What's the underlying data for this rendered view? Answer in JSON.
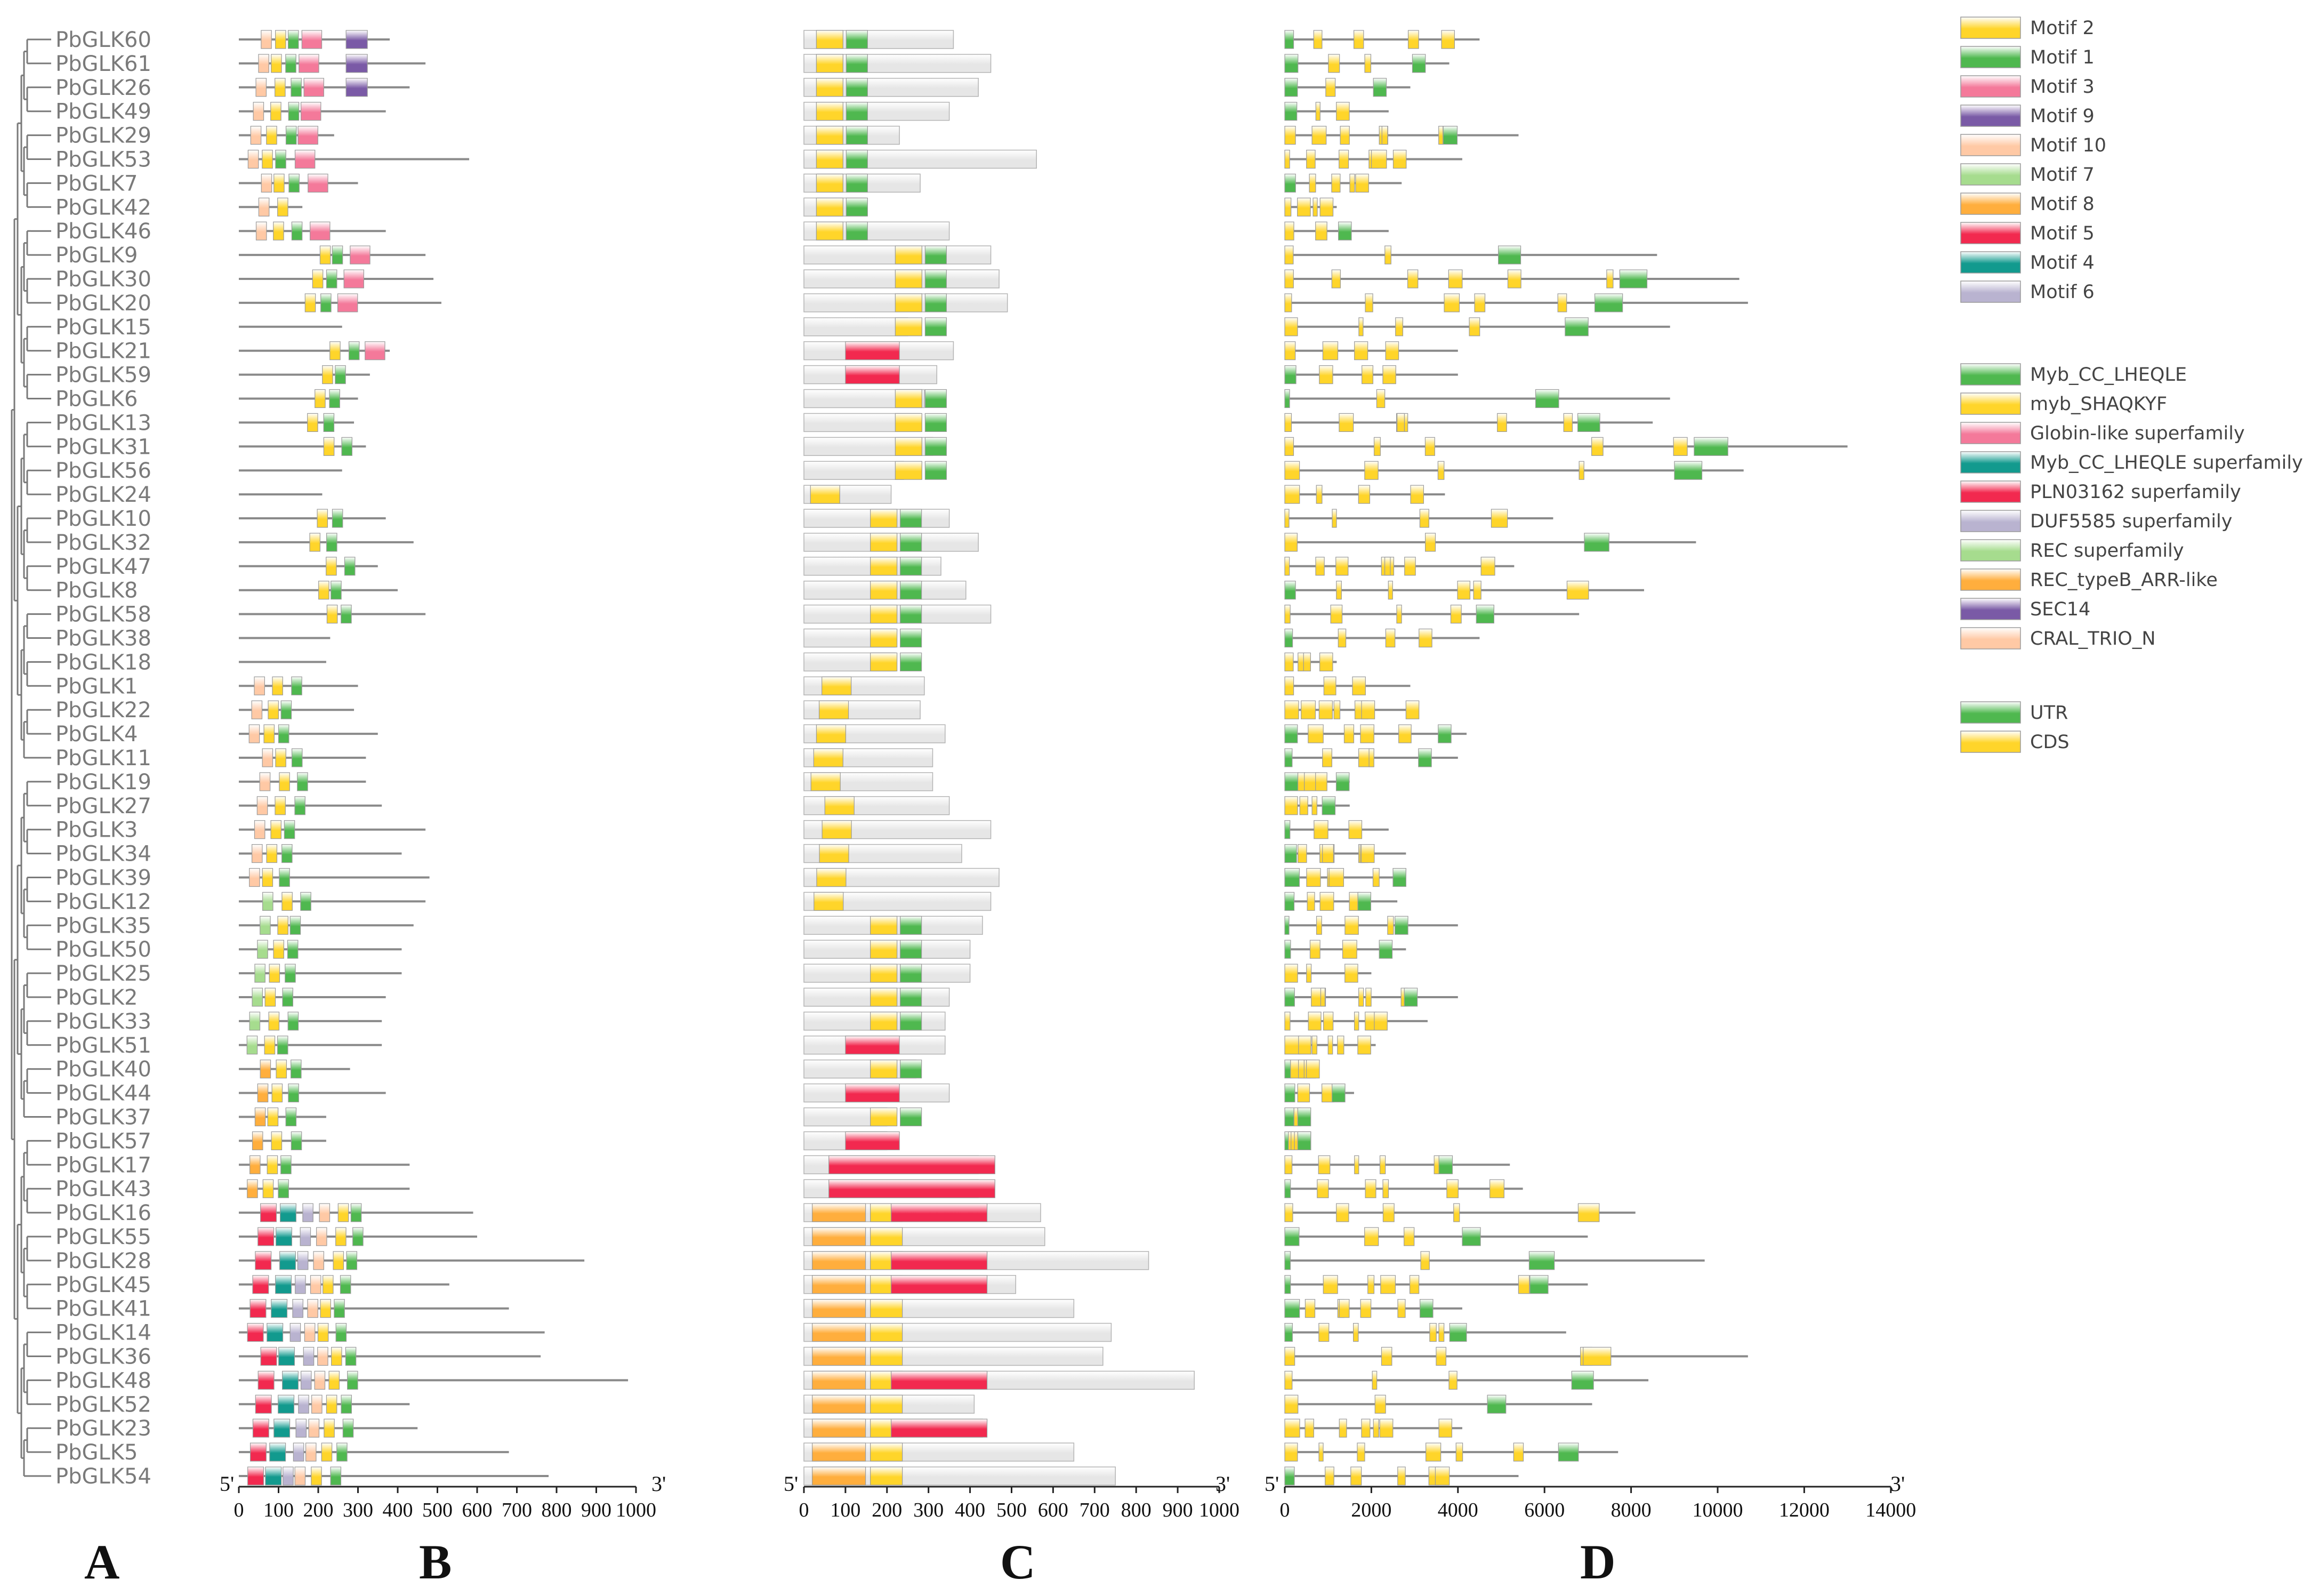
{
  "genes": [
    "PbGLK60",
    "PbGLK61",
    "PbGLK26",
    "PbGLK49",
    "PbGLK29",
    "PbGLK53",
    "PbGLK7",
    "PbGLK42",
    "PbGLK46",
    "PbGLK9",
    "PbGLK30",
    "PbGLK20",
    "PbGLK15",
    "PbGLK21",
    "PbGLK59",
    "PbGLK6",
    "PbGLK13",
    "PbGLK31",
    "PbGLK56",
    "PbGLK24",
    "PbGLK10",
    "PbGLK32",
    "PbGLK47",
    "PbGLK8",
    "PbGLK58",
    "PbGLK38",
    "PbGLK18",
    "PbGLK1",
    "PbGLK22",
    "PbGLK4",
    "PbGLK11",
    "PbGLK19",
    "PbGLK27",
    "PbGLK3",
    "PbGLK34",
    "PbGLK39",
    "PbGLK12",
    "PbGLK35",
    "PbGLK50",
    "PbGLK25",
    "PbGLK2",
    "PbGLK33",
    "PbGLK51",
    "PbGLK40",
    "PbGLK44",
    "PbGLK37",
    "PbGLK57",
    "PbGLK17",
    "PbGLK43",
    "PbGLK16",
    "PbGLK55",
    "PbGLK28",
    "PbGLK45",
    "PbGLK41",
    "PbGLK14",
    "PbGLK36",
    "PbGLK48",
    "PbGLK52",
    "PbGLK23",
    "PbGLK5",
    "PbGLK54"
  ],
  "panels": {
    "a": "A",
    "b": "B",
    "c": "C",
    "d": "D"
  },
  "ends": {
    "five": "5'",
    "three": "3'"
  },
  "axes": {
    "b_ticks": [
      "0",
      "100",
      "200",
      "300",
      "400",
      "500",
      "600",
      "700",
      "800",
      "900",
      "1000"
    ],
    "b_values": [
      0,
      100,
      200,
      300,
      400,
      500,
      600,
      700,
      800,
      900,
      1000
    ],
    "c_ticks": [
      "0",
      "100",
      "200",
      "300",
      "400",
      "500",
      "600",
      "700",
      "800",
      "900",
      "1000"
    ],
    "c_values": [
      0,
      100,
      200,
      300,
      400,
      500,
      600,
      700,
      800,
      900,
      1000
    ],
    "d_ticks": [
      "0",
      "2000",
      "4000",
      "6000",
      "8000",
      "10000",
      "12000",
      "14000"
    ],
    "d_values": [
      0,
      2000,
      4000,
      6000,
      8000,
      10000,
      12000,
      14000
    ]
  },
  "legend": {
    "motifs": [
      {
        "label": "Motif 2",
        "color": "#ffd52a"
      },
      {
        "label": "Motif 1",
        "color": "#4fb84f"
      },
      {
        "label": "Motif 3",
        "color": "#f4799a"
      },
      {
        "label": "Motif 9",
        "color": "#7a5aa6"
      },
      {
        "label": "Motif 10",
        "color": "#ffc9a5"
      },
      {
        "label": "Motif 7",
        "color": "#a6dc8e"
      },
      {
        "label": "Motif 8",
        "color": "#ffae3d"
      },
      {
        "label": "Motif 5",
        "color": "#f2294f"
      },
      {
        "label": "Motif 4",
        "color": "#129a8e"
      },
      {
        "label": "Motif 6",
        "color": "#b9b3d0"
      }
    ],
    "domains": [
      {
        "label": "Myb_CC_LHEQLE",
        "color": "#4fb84f"
      },
      {
        "label": "myb_SHAQKYF",
        "color": "#ffd52a"
      },
      {
        "label": "Globin-like superfamily",
        "color": "#f4799a"
      },
      {
        "label": "Myb_CC_LHEQLE superfamily",
        "color": "#129a8e"
      },
      {
        "label": "PLN03162 superfamily",
        "color": "#f2294f"
      },
      {
        "label": "DUF5585 superfamily",
        "color": "#b9b3d0"
      },
      {
        "label": "REC superfamily",
        "color": "#a6dc8e"
      },
      {
        "label": "REC_typeB_ARR-like",
        "color": "#ffae3d"
      },
      {
        "label": "SEC14",
        "color": "#7a5aa6"
      },
      {
        "label": "CRAL_TRIO_N",
        "color": "#ffc9a5"
      }
    ],
    "structure": [
      {
        "label": "UTR",
        "color": "#4fb84f"
      },
      {
        "label": "CDS",
        "color": "#ffd52a"
      }
    ]
  },
  "colors": {
    "line": "#8a8a8a",
    "box": "#e6e6e6",
    "boxEdge": "#b4b4b4",
    "tree": "#7a7a7a"
  }
}
